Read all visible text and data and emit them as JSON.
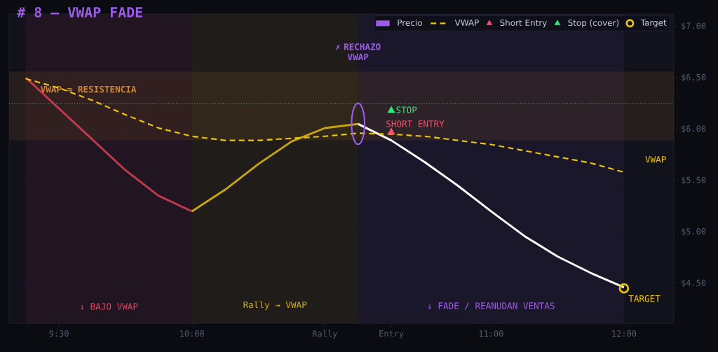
{
  "chart_data": {
    "type": "line",
    "title": "# 8 — VWAP FADE",
    "categories": [
      null,
      "9:30",
      null,
      null,
      null,
      "10:00",
      null,
      null,
      null,
      "Rally",
      null,
      "Entry",
      null,
      null,
      "11:00",
      null,
      null,
      null,
      "12:00"
    ],
    "ylim": [
      4.11,
      7.12
    ],
    "yticks": [
      {
        "value": 4.5,
        "label": "$4.50"
      },
      {
        "value": 5.0,
        "label": "$5.00"
      },
      {
        "value": 5.5,
        "label": "$5.50"
      },
      {
        "value": 6.0,
        "label": "$6.00"
      },
      {
        "value": 6.5,
        "label": "$6.50"
      },
      {
        "value": 7.0,
        "label": "$7.00"
      }
    ],
    "grid": "y",
    "legend": "top right",
    "series": [
      {
        "color": "#c0394f",
        "values": [
          6.5,
          6.2,
          5.9,
          5.6,
          5.35,
          5.2,
          null,
          null,
          null,
          null,
          null,
          null,
          null,
          null,
          null,
          null,
          null,
          null,
          null
        ]
      },
      {
        "color": "#c9a50d",
        "values": [
          null,
          null,
          null,
          null,
          null,
          5.2,
          5.41,
          5.66,
          5.88,
          6.01,
          6.05,
          null,
          null,
          null,
          null,
          null,
          null,
          null,
          null
        ]
      },
      {
        "color": "#ffffff",
        "values": [
          null,
          null,
          null,
          null,
          null,
          null,
          null,
          null,
          null,
          null,
          6.05,
          5.89,
          5.68,
          5.45,
          5.2,
          4.96,
          4.76,
          4.6,
          4.46
        ]
      },
      {
        "name": "VWAP",
        "color": "#f0c800",
        "line_style": "dashed",
        "values": [
          6.49,
          6.4,
          6.28,
          6.14,
          6.01,
          5.93,
          5.89,
          5.89,
          5.91,
          5.93,
          5.96,
          5.95,
          5.93,
          5.89,
          5.85,
          5.79,
          5.73,
          5.67,
          5.58
        ]
      },
      {
        "name": "Short Entry",
        "type": "scatter",
        "marker": "triangle",
        "color": "#f0506e",
        "values": [
          null,
          null,
          null,
          null,
          null,
          null,
          null,
          null,
          null,
          null,
          null,
          5.97,
          null,
          null,
          null,
          null,
          null,
          null,
          null
        ]
      },
      {
        "name": "Stop (cover)",
        "type": "scatter",
        "marker": "triangle",
        "color": "#2ee87a",
        "values": [
          null,
          null,
          null,
          null,
          null,
          null,
          null,
          null,
          null,
          null,
          null,
          6.18,
          null,
          null,
          null,
          null,
          null,
          null,
          null
        ]
      },
      {
        "name": "Target",
        "type": "scatter",
        "marker": "circle",
        "color": "#f0c800",
        "values": [
          null,
          null,
          null,
          null,
          null,
          null,
          null,
          null,
          null,
          null,
          null,
          null,
          null,
          null,
          null,
          null,
          null,
          null,
          4.45
        ]
      }
    ],
    "bands": [
      {
        "axis": "y",
        "from": 5.89,
        "to": 6.56,
        "label": "VWAP = RESISTENCIA",
        "color": "#d4872a"
      }
    ],
    "ref_lines": [
      {
        "axis": "y",
        "value": 6.25,
        "color": "#2ecc71",
        "line_style": "dotted"
      }
    ],
    "annotations": [
      "Precio",
      "✗ RECHAZO VWAP",
      "STOP",
      "SHORT ENTRY",
      "TARGET",
      "VWAP",
      "↓ BAJO VWAP",
      "Rally → VWAP",
      "↓ FADE / REANUDAN VENTAS"
    ]
  }
}
